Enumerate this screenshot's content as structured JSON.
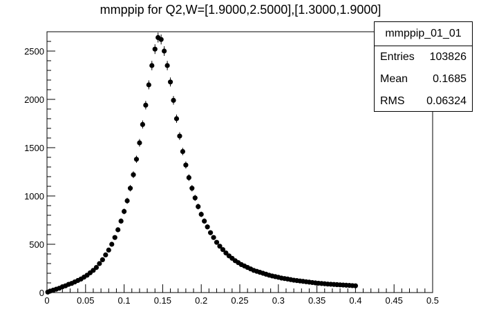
{
  "title": "mmppip for Q2,W=[1.9000,2.5000],[1.3000,1.9000]",
  "stats": {
    "name": "mmppip_01_01",
    "entries_label": "Entries",
    "entries_value": "103826",
    "mean_label": "Mean",
    "mean_value": "0.1685",
    "rms_label": "RMS",
    "rms_value": "0.06324"
  },
  "chart_data": {
    "type": "scatter",
    "title": "mmppip for Q2,W=[1.9000,2.5000],[1.3000,1.9000]",
    "xlabel": "",
    "ylabel": "",
    "xlim": [
      0,
      0.5
    ],
    "ylim": [
      0,
      2700
    ],
    "xticks": [
      "0",
      "0.05",
      "0.1",
      "0.15",
      "0.2",
      "0.25",
      "0.3",
      "0.35",
      "0.4",
      "0.45",
      "0.5"
    ],
    "yticks": [
      "0",
      "500",
      "1000",
      "1500",
      "2000",
      "2500"
    ],
    "marker_color": "#000000",
    "x": [
      0.001,
      0.004,
      0.008,
      0.012,
      0.016,
      0.02,
      0.024,
      0.028,
      0.032,
      0.036,
      0.04,
      0.044,
      0.048,
      0.052,
      0.056,
      0.06,
      0.064,
      0.068,
      0.072,
      0.076,
      0.08,
      0.084,
      0.088,
      0.092,
      0.096,
      0.1,
      0.104,
      0.108,
      0.112,
      0.116,
      0.12,
      0.124,
      0.128,
      0.132,
      0.136,
      0.14,
      0.144,
      0.148,
      0.152,
      0.156,
      0.16,
      0.164,
      0.168,
      0.172,
      0.176,
      0.18,
      0.184,
      0.188,
      0.192,
      0.196,
      0.2,
      0.204,
      0.208,
      0.212,
      0.216,
      0.22,
      0.224,
      0.228,
      0.232,
      0.236,
      0.24,
      0.244,
      0.248,
      0.252,
      0.256,
      0.26,
      0.264,
      0.268,
      0.272,
      0.276,
      0.28,
      0.284,
      0.288,
      0.292,
      0.296,
      0.3,
      0.304,
      0.308,
      0.312,
      0.316,
      0.32,
      0.324,
      0.328,
      0.332,
      0.336,
      0.34,
      0.344,
      0.348,
      0.352,
      0.356,
      0.36,
      0.364,
      0.368,
      0.372,
      0.376,
      0.38,
      0.384,
      0.388,
      0.392,
      0.396,
      0.4
    ],
    "y": [
      5,
      15,
      25,
      35,
      45,
      60,
      70,
      85,
      95,
      110,
      125,
      140,
      160,
      180,
      205,
      230,
      260,
      300,
      340,
      390,
      440,
      500,
      570,
      650,
      740,
      840,
      950,
      1080,
      1220,
      1380,
      1550,
      1740,
      1940,
      2150,
      2350,
      2520,
      2640,
      2620,
      2500,
      2350,
      2180,
      1990,
      1800,
      1620,
      1460,
      1320,
      1190,
      1080,
      980,
      890,
      810,
      740,
      680,
      620,
      570,
      520,
      480,
      445,
      410,
      380,
      355,
      330,
      310,
      290,
      275,
      260,
      245,
      230,
      220,
      210,
      200,
      190,
      180,
      172,
      165,
      158,
      150,
      145,
      140,
      134,
      128,
      124,
      120,
      116,
      112,
      108,
      104,
      100,
      97,
      94,
      91,
      88,
      86,
      84,
      82,
      80,
      78,
      76,
      74,
      72,
      70
    ]
  }
}
